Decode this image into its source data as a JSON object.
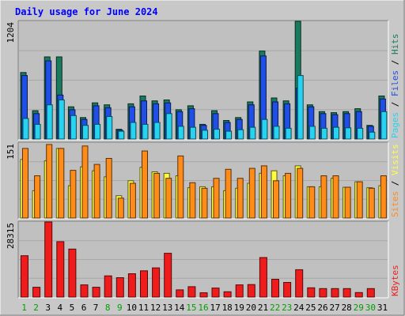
{
  "chart_data": {
    "type": "bar",
    "title": "Daily usage for June 2024",
    "categories": [
      "1",
      "2",
      "3",
      "4",
      "5",
      "6",
      "7",
      "8",
      "9",
      "10",
      "11",
      "12",
      "13",
      "14",
      "15",
      "16",
      "17",
      "18",
      "19",
      "20",
      "21",
      "22",
      "23",
      "24",
      "25",
      "26",
      "27",
      "28",
      "29",
      "30",
      "31"
    ],
    "weekend_days": [
      "1",
      "2",
      "8",
      "9",
      "15",
      "16",
      "22",
      "23",
      "29",
      "30"
    ],
    "panels": [
      {
        "id": "hits-files-pages",
        "ymax_label": "1204",
        "ymax": 1204,
        "series": [
          {
            "name": "Hits",
            "color": "#1a7a5e",
            "values": [
              680,
              290,
              840,
              840,
              330,
              220,
              370,
              350,
              100,
              360,
              440,
              390,
              400,
              300,
              340,
              150,
              290,
              190,
              220,
              380,
              900,
              420,
              390,
              1204,
              350,
              280,
              270,
              280,
              310,
              140,
              440
            ]
          },
          {
            "name": "Files",
            "color": "#1f4fe6",
            "values": [
              650,
              260,
              800,
              450,
              300,
              200,
              340,
              320,
              90,
              330,
              390,
              360,
              370,
              280,
              310,
              140,
              260,
              170,
              200,
              350,
              850,
              380,
              360,
              520,
              330,
              260,
              250,
              260,
              280,
              130,
              410
            ]
          },
          {
            "name": "Pages",
            "color": "#26d3f0",
            "values": [
              210,
              150,
              350,
              400,
              240,
              140,
              150,
              230,
              80,
              170,
              150,
              170,
              260,
              130,
              120,
              90,
              100,
              80,
              95,
              120,
              200,
              130,
              110,
              650,
              130,
              110,
              120,
              115,
              110,
              70,
              280
            ]
          }
        ],
        "side_label": [
          "Pages",
          "Files",
          "Hits"
        ]
      },
      {
        "id": "visits-sites",
        "ymax_label": "151",
        "ymax": 151,
        "series": [
          {
            "name": "Visits",
            "color": "#ffff40",
            "values": [
              118,
              55,
              115,
              140,
              65,
              103,
              95,
              83,
              45,
              75,
              102,
              93,
              90,
              85,
              61,
              63,
              63,
              55,
              60,
              70,
              90,
              95,
              85,
              105,
              63,
              63,
              80,
              62,
              73,
              61,
              65
            ]
          },
          {
            "name": "Sites",
            "color": "#ff8c19",
            "values": [
              140,
              85,
              148,
              140,
              96,
              145,
              108,
              120,
              40,
              70,
              135,
              90,
              80,
              125,
              71,
              60,
              80,
              98,
              80,
              100,
              105,
              75,
              90,
              100,
              63,
              85,
              85,
              62,
              73,
              60,
              85
            ]
          }
        ],
        "side_label": [
          "Sites",
          "Visits"
        ]
      },
      {
        "id": "kbytes",
        "ymax_label": "28315",
        "ymax": 28315,
        "series": [
          {
            "name": "KBytes",
            "color": "#f01c1c",
            "values": [
              15600,
              3700,
              28315,
              20900,
              18100,
              4600,
              3700,
              8000,
              7300,
              8800,
              9900,
              11000,
              16500,
              2700,
              3900,
              1600,
              3400,
              2000,
              4600,
              4700,
              14900,
              6700,
              5500,
              10300,
              3500,
              3200,
              3200,
              3200,
              1700,
              3200,
              null
            ]
          }
        ],
        "side_label": [
          "KBytes"
        ]
      }
    ]
  },
  "colors": {
    "background": "#c8c8c8",
    "plot_background": "#c0c0c0",
    "title": "#0000ff",
    "weekday_label": "#000000",
    "weekend_label": "#00a000",
    "separator": "#ffffff",
    "separator_text": "#000000"
  }
}
